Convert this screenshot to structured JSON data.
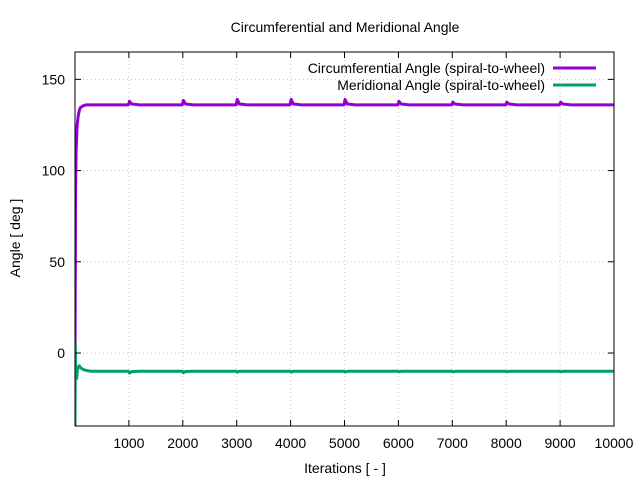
{
  "chart_data": {
    "type": "line",
    "title": "Circumferential and Meridional Angle",
    "xlabel": "Iterations [ - ]",
    "ylabel": "Angle [ deg ]",
    "xlim": [
      0,
      10000
    ],
    "ylim": [
      -40,
      165
    ],
    "x_ticks": [
      "1000",
      "2000",
      "3000",
      "4000",
      "5000",
      "6000",
      "7000",
      "8000",
      "9000",
      "10000"
    ],
    "y_ticks": [
      "0",
      "50",
      "100",
      "150"
    ],
    "grid": true,
    "legend_position": "top-right",
    "series": [
      {
        "name": "Circumferential Angle (spiral-to-wheel)",
        "color": "#9400d3",
        "x": [
          0,
          10,
          20,
          40,
          60,
          80,
          100,
          150,
          200,
          300,
          500,
          800,
          990,
          1010,
          1050,
          1200,
          1990,
          2010,
          2050,
          2200,
          2990,
          3010,
          3050,
          3200,
          3990,
          4010,
          4050,
          4200,
          4990,
          5010,
          5050,
          5200,
          5990,
          6010,
          6050,
          6200,
          6990,
          7010,
          7050,
          7200,
          7990,
          8010,
          8050,
          8200,
          8990,
          9010,
          9050,
          9200,
          10000
        ],
        "y": [
          -10,
          90,
          110,
          125,
          130,
          133,
          134.5,
          135.5,
          136,
          136,
          136,
          136,
          136,
          138,
          136.5,
          136,
          136,
          138.5,
          136.5,
          136,
          136,
          139,
          136.5,
          136,
          136,
          139,
          136.5,
          136,
          136,
          139,
          136.5,
          136,
          136,
          138,
          136.5,
          136,
          136,
          137.5,
          136.5,
          136,
          136,
          137.5,
          136.5,
          136,
          136,
          137.5,
          136.5,
          136,
          136
        ]
      },
      {
        "name": "Meridional Angle (spiral-to-wheel)",
        "color": "#009e73",
        "x": [
          0,
          5,
          10,
          20,
          30,
          50,
          80,
          100,
          150,
          200,
          300,
          500,
          800,
          990,
          1010,
          1050,
          1200,
          1990,
          2010,
          2050,
          2200,
          2990,
          3010,
          3050,
          3200,
          3990,
          4010,
          4050,
          4200,
          4990,
          5010,
          5050,
          5200,
          5990,
          6010,
          6050,
          6200,
          6990,
          7010,
          7050,
          7200,
          7990,
          8010,
          8050,
          8200,
          8990,
          9010,
          9050,
          9200,
          10000
        ],
        "y": [
          -40,
          5,
          -10,
          -12,
          -14,
          -8,
          -7,
          -8,
          -9,
          -9.5,
          -10,
          -10,
          -10,
          -10,
          -11,
          -10.2,
          -10,
          -10,
          -10.8,
          -10.1,
          -10,
          -10,
          -10.5,
          -10,
          -10,
          -10,
          -10.5,
          -10,
          -10,
          -10,
          -10.4,
          -10,
          -10,
          -10,
          -10.3,
          -10,
          -10,
          -10,
          -10.3,
          -10,
          -10,
          -10,
          -10.3,
          -10,
          -10,
          -10,
          -10.3,
          -10,
          -10,
          -10
        ]
      }
    ]
  }
}
